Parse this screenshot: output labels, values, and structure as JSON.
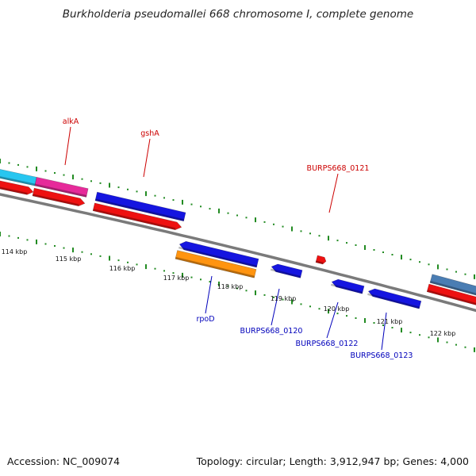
{
  "title": "Burkholderia pseudomallei 668 chromosome I, complete genome",
  "footer": {
    "accession": "Accession: NC_009074",
    "summary": "Topology: circular; Length: 3,912,947 bp; Genes: 4,000"
  },
  "colors": {
    "backbone": "#7a7a7a",
    "tick": "#228b22",
    "forward_label": "#cc0000",
    "reverse_label": "#0000bb"
  },
  "scale": {
    "unit": "kbp",
    "major_ticks_kbp": [
      114,
      115,
      116,
      117,
      118,
      119,
      120,
      121,
      122
    ],
    "tick_labels": [
      "114 kbp",
      "115 kbp",
      "116 kbp",
      "117 kbp",
      "118 kbp",
      "119 kbp",
      "120 kbp",
      "121 kbp",
      "122 kbp"
    ]
  },
  "gene_labels": [
    {
      "name": "alkA",
      "strand": "forward"
    },
    {
      "name": "gshA",
      "strand": "forward"
    },
    {
      "name": "BURPS668_0121",
      "strand": "forward"
    },
    {
      "name": "rpoD",
      "strand": "reverse"
    },
    {
      "name": "BURPS668_0120",
      "strand": "reverse"
    },
    {
      "name": "BURPS668_0122",
      "strand": "reverse"
    },
    {
      "name": "BURPS668_0123",
      "strand": "reverse"
    }
  ],
  "feature_colors": {
    "cyan": "#27c6f0",
    "magenta": "#e62a9a",
    "blue": "#1515e0",
    "red": "#ee1111",
    "orange": "#ff9410",
    "steel_blue": "#4a7db3"
  }
}
